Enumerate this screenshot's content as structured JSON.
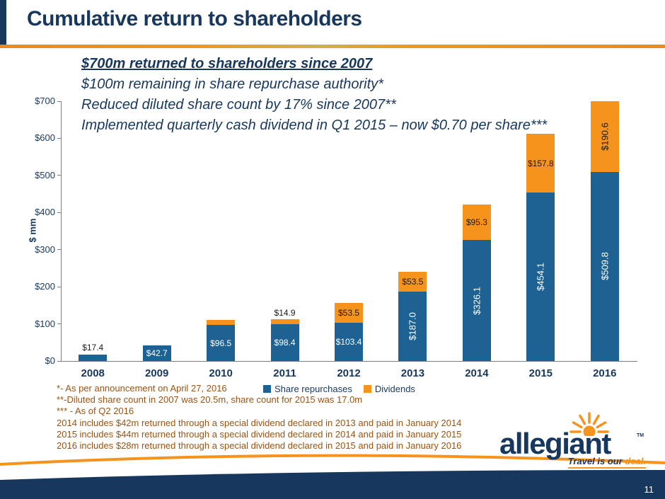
{
  "slide": {
    "title": "Cumulative return to shareholders",
    "page_number": "11"
  },
  "bullets": {
    "line1": "$700m returned to shareholders since 2007",
    "line2": "$100m remaining in share repurchase authority*",
    "line3": "Reduced diluted share count by 17% since 2007**",
    "line4": "Implemented quarterly cash dividend in Q1 2015 – now $0.70 per share***"
  },
  "chart_data": {
    "type": "bar",
    "stacked": true,
    "ylabel": "$ mm",
    "ylim": [
      0,
      700
    ],
    "ytick_step": 100,
    "ytick_labels": [
      "$0",
      "$100",
      "$200",
      "$300",
      "$400",
      "$500",
      "$600",
      "$700"
    ],
    "categories": [
      "2008",
      "2009",
      "2010",
      "2011",
      "2012",
      "2013",
      "2014",
      "2015",
      "2016"
    ],
    "series": [
      {
        "name": "Share repurchases",
        "color": "#1E6293",
        "values": [
          17.4,
          42.7,
          96.5,
          98.4,
          103.4,
          187.0,
          326.1,
          454.1,
          509.8
        ]
      },
      {
        "name": "Dividends",
        "color": "#F6931D",
        "values": [
          0,
          0,
          14.9,
          14.9,
          53.5,
          53.5,
          95.3,
          157.8,
          190.6
        ]
      }
    ],
    "bar_labels": [
      {
        "rep": "$17.4",
        "rep_style": "above",
        "div": null,
        "div_style": null
      },
      {
        "rep": "$42.7",
        "rep_style": "inside",
        "div": null,
        "div_style": null
      },
      {
        "rep": "$96.5",
        "rep_style": "inside",
        "div": null,
        "div_style": null
      },
      {
        "rep": "$98.4",
        "rep_style": "inside",
        "div": "$14.9",
        "div_style": "above"
      },
      {
        "rep": "$103.4",
        "rep_style": "inside",
        "div": "$53.5",
        "div_style": "inside"
      },
      {
        "rep": "$187.0",
        "rep_style": "vertical",
        "div": "$53.5",
        "div_style": "inside"
      },
      {
        "rep": "$326.1",
        "rep_style": "vertical",
        "div": "$95.3",
        "div_style": "inside"
      },
      {
        "rep": "$454.1",
        "rep_style": "vertical",
        "div": "$157.8",
        "div_style": "inside"
      },
      {
        "rep": "$509.8",
        "rep_style": "vertical",
        "div": "$190.6",
        "div_style": "inside-vertical"
      }
    ],
    "legend_position": "bottom"
  },
  "footnotes": {
    "lines": [
      "*- As per announcement on April 27, 2016",
      "**-Diluted share count in 2007 was 20.5m, share count for 2015 was 17.0m",
      "*** - As of Q2 2016",
      "2014 includes $42m returned through a special dividend declared in 2013 and paid in January 2014",
      "2015 includes $44m returned through a special dividend declared in 2014 and paid in January 2015",
      "2016 includes $28m returned through a special dividend declared in 2015 and paid in January 2016"
    ]
  },
  "logo": {
    "brand": "allegiant",
    "tm": "TM",
    "tagline1": "Travel is our ",
    "tagline2": "deal."
  },
  "colors": {
    "navy": "#17375E",
    "orange": "#F6931D",
    "bar_blue": "#1E6293",
    "footnote_text": "#9C5312"
  }
}
